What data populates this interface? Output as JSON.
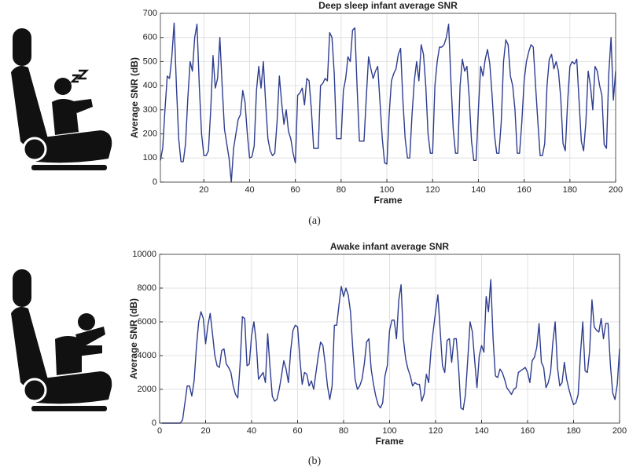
{
  "chart_data": [
    {
      "type": "line",
      "title": "Deep sleep infant average SNR",
      "xlabel": "Frame",
      "ylabel": "Average SNR (dB)",
      "caption": "(a)",
      "color": "#2e3d8f",
      "grid": true,
      "xlim": [
        1,
        200
      ],
      "xticks": [
        20,
        40,
        60,
        80,
        100,
        120,
        140,
        160,
        180,
        200
      ],
      "ylim": [
        0,
        700
      ],
      "yticks": [
        0,
        100,
        200,
        300,
        400,
        500,
        600,
        700
      ],
      "x": [
        1,
        2,
        3,
        4,
        5,
        6,
        7,
        8,
        9,
        10,
        11,
        12,
        13,
        14,
        15,
        16,
        17,
        18,
        19,
        20,
        21,
        22,
        23,
        24,
        25,
        26,
        27,
        28,
        29,
        30,
        31,
        32,
        33,
        34,
        35,
        36,
        37,
        38,
        39,
        40,
        41,
        42,
        43,
        44,
        45,
        46,
        47,
        48,
        49,
        50,
        51,
        52,
        53,
        54,
        55,
        56,
        57,
        58,
        59,
        60,
        61,
        62,
        63,
        64,
        65,
        66,
        67,
        68,
        69,
        70,
        71,
        72,
        73,
        74,
        75,
        76,
        77,
        78,
        79,
        80,
        81,
        82,
        83,
        84,
        85,
        86,
        87,
        88,
        89,
        90,
        91,
        92,
        93,
        94,
        95,
        96,
        97,
        98,
        99,
        100,
        101,
        102,
        103,
        104,
        105,
        106,
        107,
        108,
        109,
        110,
        111,
        112,
        113,
        114,
        115,
        116,
        117,
        118,
        119,
        120,
        121,
        122,
        123,
        124,
        125,
        126,
        127,
        128,
        129,
        130,
        131,
        132,
        133,
        134,
        135,
        136,
        137,
        138,
        139,
        140,
        141,
        142,
        143,
        144,
        145,
        146,
        147,
        148,
        149,
        150,
        151,
        152,
        153,
        154,
        155,
        156,
        157,
        158,
        159,
        160,
        161,
        162,
        163,
        164,
        165,
        166,
        167,
        168,
        169,
        170,
        171,
        172,
        173,
        174,
        175,
        176,
        177,
        178,
        179,
        180,
        181,
        182,
        183,
        184,
        185,
        186,
        187,
        188,
        189,
        190,
        191,
        192,
        193,
        194,
        195,
        196,
        197,
        198,
        199,
        200
      ],
      "values": [
        90,
        140,
        300,
        440,
        430,
        520,
        660,
        400,
        180,
        85,
        85,
        160,
        350,
        500,
        460,
        600,
        655,
        400,
        200,
        110,
        110,
        130,
        300,
        525,
        390,
        430,
        600,
        400,
        220,
        160,
        100,
        0,
        140,
        200,
        260,
        280,
        380,
        330,
        200,
        100,
        105,
        150,
        380,
        480,
        390,
        500,
        330,
        180,
        130,
        110,
        120,
        250,
        440,
        330,
        240,
        300,
        210,
        180,
        120,
        80,
        360,
        370,
        390,
        320,
        430,
        420,
        300,
        140,
        140,
        140,
        400,
        410,
        430,
        420,
        620,
        600,
        450,
        180,
        180,
        180,
        380,
        430,
        520,
        500,
        630,
        640,
        390,
        170,
        170,
        170,
        350,
        520,
        470,
        430,
        460,
        480,
        330,
        180,
        80,
        75,
        280,
        420,
        450,
        470,
        530,
        555,
        340,
        180,
        100,
        100,
        280,
        420,
        500,
        420,
        570,
        530,
        400,
        200,
        120,
        120,
        400,
        500,
        560,
        560,
        570,
        600,
        655,
        420,
        220,
        120,
        120,
        400,
        510,
        460,
        480,
        350,
        170,
        90,
        90,
        300,
        480,
        440,
        510,
        550,
        490,
        360,
        200,
        120,
        120,
        250,
        500,
        590,
        570,
        440,
        400,
        300,
        120,
        120,
        250,
        420,
        500,
        540,
        570,
        560,
        400,
        250,
        110,
        110,
        160,
        400,
        510,
        530,
        470,
        500,
        460,
        350,
        160,
        130,
        330,
        480,
        500,
        490,
        510,
        340,
        170,
        130,
        250,
        460,
        400,
        300,
        480,
        460,
        400,
        360,
        155,
        140,
        450,
        600,
        340,
        460
      ]
    },
    {
      "type": "line",
      "title": "Awake infant average SNR",
      "xlabel": "Frame",
      "ylabel": "Average SNR (dB)",
      "caption": "(b)",
      "color": "#2e3d8f",
      "grid": true,
      "xlim": [
        0,
        200
      ],
      "xticks": [
        0,
        20,
        40,
        60,
        80,
        100,
        120,
        140,
        160,
        180,
        200
      ],
      "ylim": [
        0,
        10000
      ],
      "yticks": [
        0,
        2000,
        4000,
        6000,
        8000,
        10000
      ],
      "x": [
        1,
        2,
        3,
        4,
        5,
        6,
        7,
        8,
        9,
        10,
        11,
        12,
        13,
        14,
        15,
        16,
        17,
        18,
        19,
        20,
        21,
        22,
        23,
        24,
        25,
        26,
        27,
        28,
        29,
        30,
        31,
        32,
        33,
        34,
        35,
        36,
        37,
        38,
        39,
        40,
        41,
        42,
        43,
        44,
        45,
        46,
        47,
        48,
        49,
        50,
        51,
        52,
        53,
        54,
        55,
        56,
        57,
        58,
        59,
        60,
        61,
        62,
        63,
        64,
        65,
        66,
        67,
        68,
        69,
        70,
        71,
        72,
        73,
        74,
        75,
        76,
        77,
        78,
        79,
        80,
        81,
        82,
        83,
        84,
        85,
        86,
        87,
        88,
        89,
        90,
        91,
        92,
        93,
        94,
        95,
        96,
        97,
        98,
        99,
        100,
        101,
        102,
        103,
        104,
        105,
        106,
        107,
        108,
        109,
        110,
        111,
        112,
        113,
        114,
        115,
        116,
        117,
        118,
        119,
        120,
        121,
        122,
        123,
        124,
        125,
        126,
        127,
        128,
        129,
        130,
        131,
        132,
        133,
        134,
        135,
        136,
        137,
        138,
        139,
        140,
        141,
        142,
        143,
        144,
        145,
        146,
        147,
        148,
        149,
        150,
        151,
        152,
        153,
        154,
        155,
        156,
        157,
        158,
        159,
        160,
        161,
        162,
        163,
        164,
        165,
        166,
        167,
        168,
        169,
        170,
        171,
        172,
        173,
        174,
        175,
        176,
        177,
        178,
        179,
        180,
        181,
        182,
        183,
        184,
        185,
        186,
        187,
        188,
        189,
        190,
        191,
        192,
        193,
        194,
        195,
        196,
        197,
        198,
        199,
        200
      ],
      "values": [
        0,
        0,
        0,
        0,
        0,
        0,
        0,
        0,
        0,
        200,
        1200,
        2200,
        2200,
        1600,
        2500,
        4500,
        6000,
        6600,
        6200,
        4700,
        5800,
        6500,
        5300,
        4000,
        3400,
        3300,
        4300,
        4400,
        3500,
        3300,
        3000,
        2200,
        1700,
        1500,
        3500,
        6300,
        6200,
        3400,
        3500,
        5200,
        6000,
        4800,
        2600,
        2800,
        3000,
        2400,
        5300,
        3300,
        1600,
        1300,
        1400,
        2000,
        2800,
        3700,
        3200,
        2400,
        4300,
        5500,
        5800,
        5700,
        3800,
        2300,
        3000,
        2900,
        2200,
        2500,
        2000,
        3000,
        4000,
        4800,
        4600,
        3500,
        2200,
        1400,
        2200,
        5800,
        5800,
        7000,
        8100,
        7500,
        8000,
        7600,
        6600,
        4400,
        2600,
        2000,
        2200,
        2600,
        3500,
        4800,
        5000,
        3200,
        2300,
        1600,
        1100,
        900,
        1200,
        2800,
        3400,
        5500,
        6100,
        6100,
        5000,
        7300,
        8200,
        5000,
        3800,
        3200,
        2800,
        2200,
        2400,
        2300,
        2300,
        1300,
        1700,
        2900,
        2400,
        4300,
        5500,
        6600,
        7600,
        5500,
        3400,
        3000,
        4900,
        5000,
        3600,
        5000,
        5000,
        3300,
        900,
        800,
        1700,
        3800,
        6000,
        5400,
        3700,
        2100,
        4000,
        4600,
        4200,
        7500,
        6600,
        8500,
        5000,
        2800,
        2700,
        3200,
        3000,
        2600,
        2100,
        1900,
        1700,
        2000,
        2100,
        3000,
        3100,
        3200,
        3300,
        3000,
        2400,
        3700,
        3900,
        4500,
        5900,
        3600,
        3300,
        2100,
        2400,
        3000,
        4800,
        6000,
        3300,
        2200,
        2400,
        3600,
        2600,
        2000,
        1500,
        1100,
        1200,
        1700,
        4100,
        6000,
        3100,
        3000,
        4300,
        7300,
        5700,
        5500,
        5400,
        6200,
        5000,
        5900,
        5900,
        3500,
        1800,
        1400,
        2300,
        4400
      ]
    }
  ]
}
